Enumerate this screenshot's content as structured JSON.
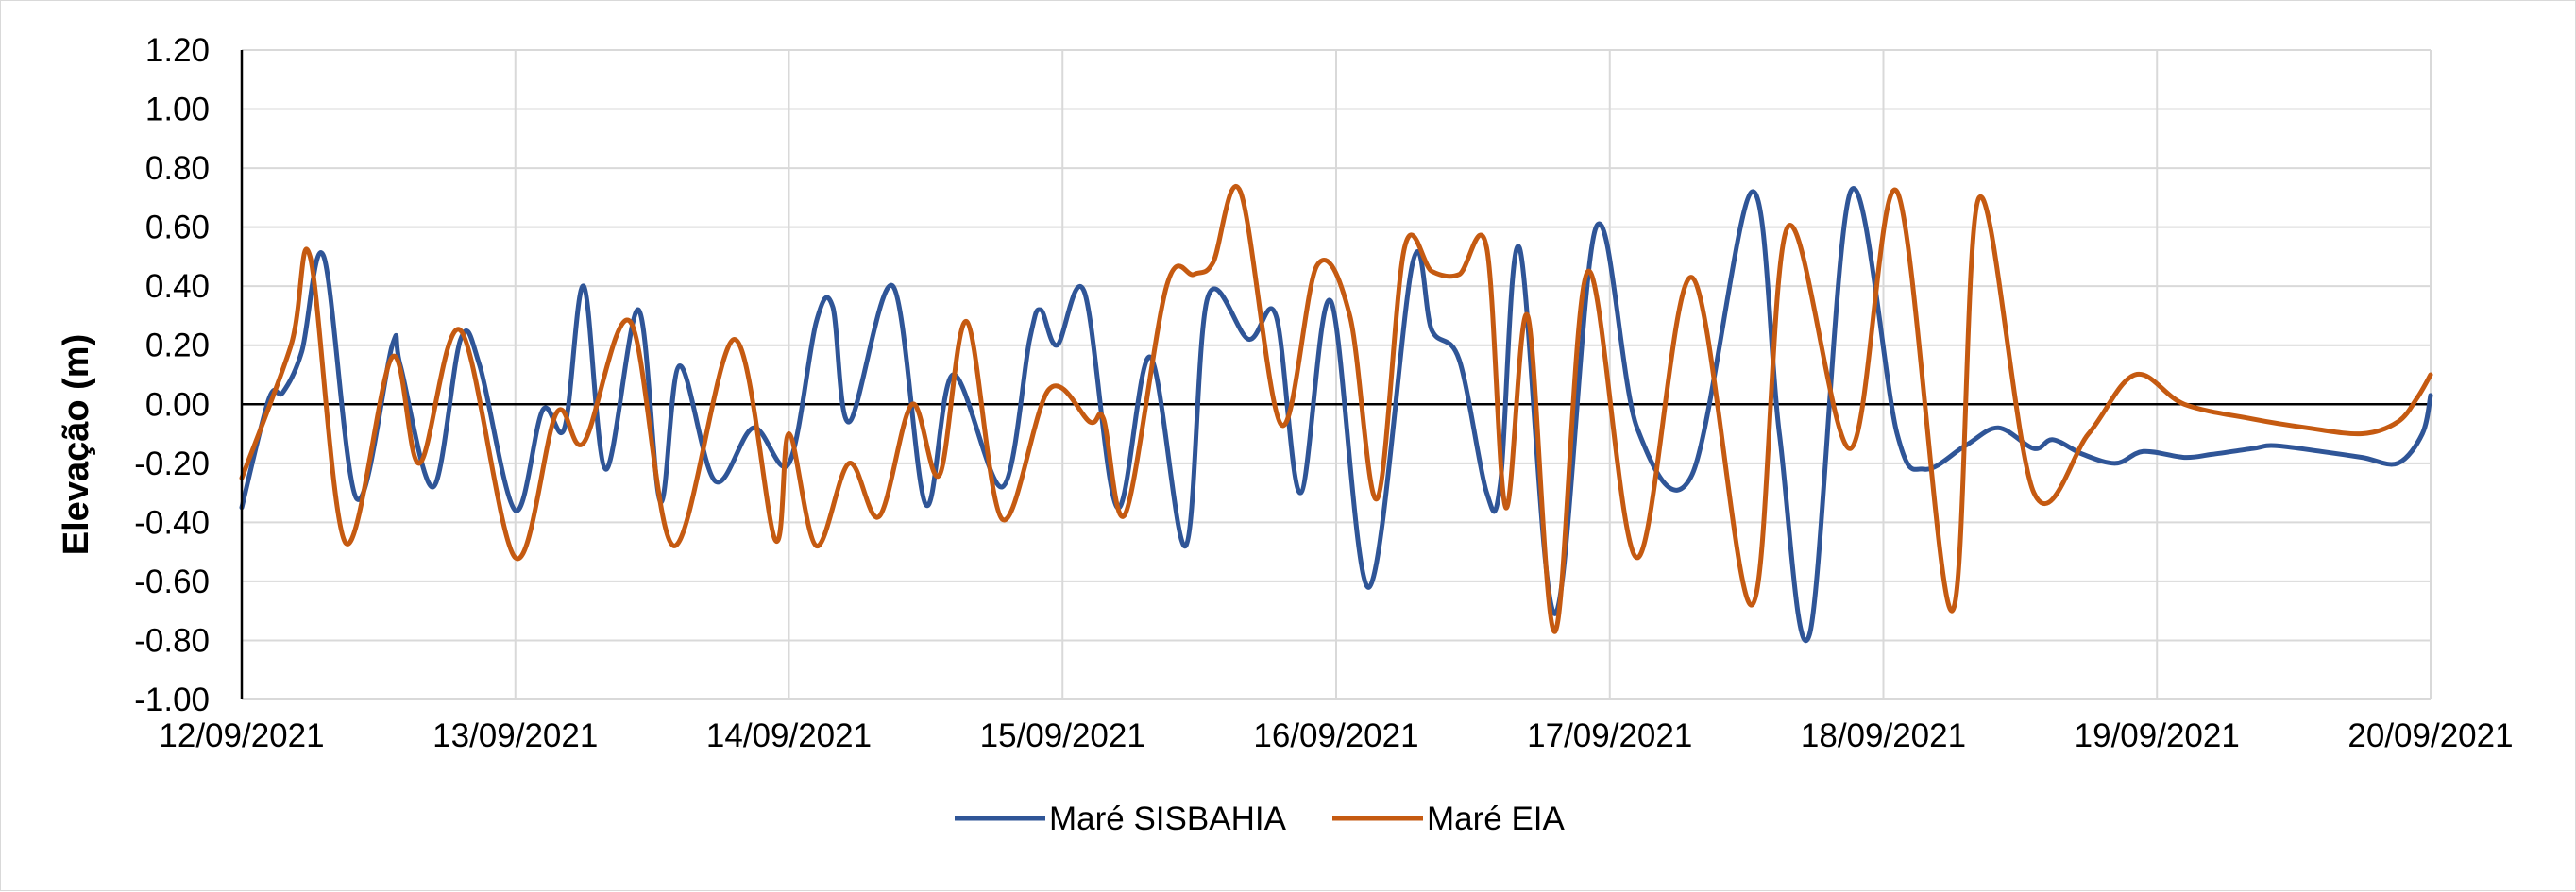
{
  "chart_data": {
    "type": "line",
    "ylabel": "Elevação (m)",
    "xlabel": "",
    "ylim": [
      -1.0,
      1.2
    ],
    "yticks": [
      "-1.00",
      "-0.80",
      "-0.60",
      "-0.40",
      "-0.20",
      "0.00",
      "0.20",
      "0.40",
      "0.60",
      "0.80",
      "1.00",
      "1.20"
    ],
    "xlim_days": [
      0,
      8
    ],
    "xticks": [
      "12/09/2021",
      "13/09/2021",
      "14/09/2021",
      "15/09/2021",
      "16/09/2021",
      "17/09/2021",
      "18/09/2021",
      "19/09/2021",
      "20/09/2021"
    ],
    "grid": true,
    "legend_position": "bottom",
    "series": [
      {
        "name": "Maré SISBAHIA",
        "color": "#2f5597",
        "x": [
          0,
          0.1,
          0.15,
          0.22,
          0.3,
          0.42,
          0.55,
          0.58,
          0.7,
          0.8,
          0.87,
          1.0,
          1.1,
          1.18,
          1.25,
          1.33,
          1.45,
          1.53,
          1.6,
          1.73,
          1.87,
          2.0,
          2.1,
          2.16,
          2.22,
          2.38,
          2.5,
          2.6,
          2.78,
          2.88,
          2.92,
          2.98,
          3.08,
          3.2,
          3.32,
          3.45,
          3.53,
          3.68,
          3.78,
          3.87,
          3.98,
          4.12,
          4.28,
          4.35,
          4.45,
          4.55,
          4.6,
          4.67,
          4.8,
          4.95,
          5.1,
          5.3,
          5.52,
          5.62,
          5.73,
          5.88,
          6.05,
          6.15,
          6.3,
          6.42,
          6.55,
          6.62,
          6.73,
          6.85,
          6.95,
          7.1,
          7.2,
          7.35,
          7.43,
          7.6,
          7.75,
          7.88,
          7.97,
          8.0
        ],
        "values": [
          -0.35,
          0.02,
          0.04,
          0.18,
          0.5,
          -0.32,
          0.2,
          0.13,
          -0.28,
          0.22,
          0.13,
          -0.36,
          -0.02,
          -0.08,
          0.4,
          -0.22,
          0.32,
          -0.33,
          0.13,
          -0.26,
          -0.08,
          -0.2,
          0.28,
          0.33,
          -0.06,
          0.4,
          -0.34,
          0.1,
          -0.28,
          0.22,
          0.32,
          0.2,
          0.38,
          -0.35,
          0.16,
          -0.48,
          0.36,
          0.22,
          0.3,
          -0.3,
          0.35,
          -0.62,
          0.48,
          0.25,
          0.15,
          -0.3,
          -0.27,
          0.53,
          -0.71,
          0.6,
          -0.08,
          -0.24,
          0.72,
          -0.1,
          -0.78,
          0.72,
          -0.1,
          -0.22,
          -0.14,
          -0.08,
          -0.15,
          -0.12,
          -0.17,
          -0.2,
          -0.16,
          -0.18,
          -0.17,
          -0.15,
          -0.14,
          -0.16,
          -0.18,
          -0.2,
          -0.1,
          0.03
        ]
      },
      {
        "name": "Maré EIA",
        "color": "#c55a11",
        "x": [
          0,
          0.18,
          0.25,
          0.38,
          0.55,
          0.65,
          0.8,
          1.0,
          1.15,
          1.25,
          1.42,
          1.58,
          1.8,
          1.95,
          2.0,
          2.1,
          2.22,
          2.33,
          2.45,
          2.55,
          2.65,
          2.78,
          2.95,
          3.1,
          3.15,
          3.23,
          3.38,
          3.48,
          3.55,
          3.65,
          3.8,
          3.93,
          4.05,
          4.15,
          4.25,
          4.35,
          4.45,
          4.55,
          4.62,
          4.7,
          4.8,
          4.92,
          5.1,
          5.3,
          5.52,
          5.65,
          5.88,
          6.05,
          6.25,
          6.35,
          6.55,
          6.75,
          6.92,
          7.1,
          7.35,
          7.55,
          7.75,
          7.88,
          7.95,
          8.0
        ],
        "values": [
          -0.25,
          0.2,
          0.5,
          -0.47,
          0.16,
          -0.2,
          0.25,
          -0.52,
          -0.03,
          -0.13,
          0.28,
          -0.48,
          0.22,
          -0.46,
          -0.1,
          -0.48,
          -0.2,
          -0.38,
          0.0,
          -0.24,
          0.28,
          -0.39,
          0.05,
          -0.06,
          -0.05,
          -0.37,
          0.4,
          0.44,
          0.48,
          0.72,
          -0.07,
          0.47,
          0.3,
          -0.32,
          0.53,
          0.45,
          0.44,
          0.53,
          -0.35,
          0.3,
          -0.77,
          0.45,
          -0.52,
          0.43,
          -0.68,
          0.6,
          -0.15,
          0.72,
          -0.7,
          0.7,
          -0.3,
          -0.1,
          0.1,
          0.0,
          -0.05,
          -0.08,
          -0.1,
          -0.06,
          0.02,
          0.1
        ]
      }
    ]
  }
}
